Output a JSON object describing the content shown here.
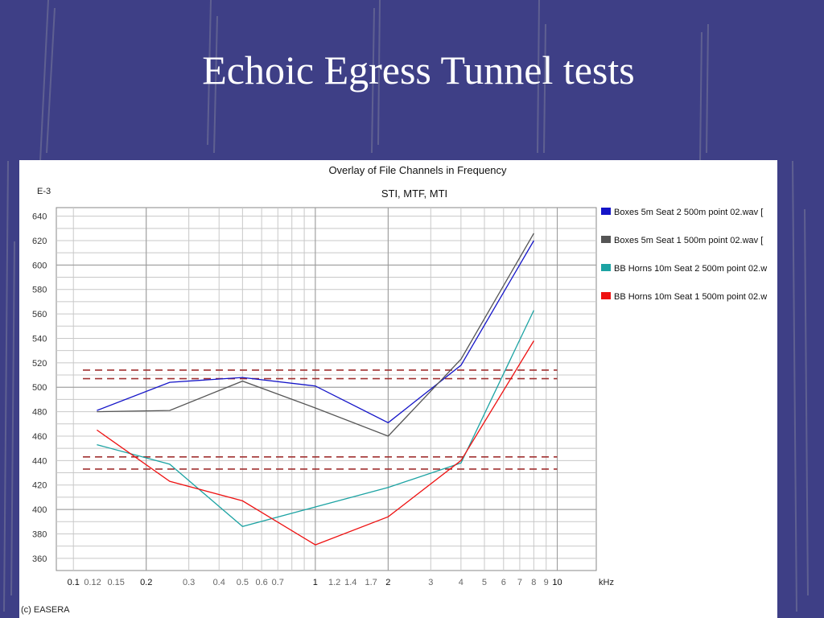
{
  "slide": {
    "title": "Echoic Egress Tunnel tests"
  },
  "chart_data": {
    "type": "line",
    "title": "Overlay of File Channels in Frequency",
    "subtitle": "STI, MTF, MTI",
    "y_exponent_label": "E-3",
    "xlabel": "kHz",
    "ylabel": "",
    "x_scale": "log",
    "xlim": [
      0.085,
      14.5
    ],
    "ylim": [
      350,
      647
    ],
    "grid": true,
    "legend_position": "right",
    "x_tick_labels": [
      {
        "value": 0.1,
        "label": "0.1"
      },
      {
        "value": 0.12,
        "label": "0.12"
      },
      {
        "value": 0.15,
        "label": "0.15"
      },
      {
        "value": 0.2,
        "label": "0.2"
      },
      {
        "value": 0.3,
        "label": "0.3"
      },
      {
        "value": 0.4,
        "label": "0.4"
      },
      {
        "value": 0.5,
        "label": "0.5"
      },
      {
        "value": 0.6,
        "label": "0.6"
      },
      {
        "value": 0.7,
        "label": "0.7"
      },
      {
        "value": 1,
        "label": "1"
      },
      {
        "value": 1.2,
        "label": "1.2"
      },
      {
        "value": 1.4,
        "label": "1.4"
      },
      {
        "value": 1.7,
        "label": "1.7"
      },
      {
        "value": 2,
        "label": "2"
      },
      {
        "value": 3,
        "label": "3"
      },
      {
        "value": 4,
        "label": "4"
      },
      {
        "value": 5,
        "label": "5"
      },
      {
        "value": 6,
        "label": "6"
      },
      {
        "value": 7,
        "label": "7"
      },
      {
        "value": 8,
        "label": "8"
      },
      {
        "value": 9,
        "label": "9"
      },
      {
        "value": 10,
        "label": "10"
      }
    ],
    "y_ticks": [
      360,
      380,
      400,
      420,
      440,
      460,
      480,
      500,
      520,
      540,
      560,
      580,
      600,
      620,
      640
    ],
    "x": [
      0.125,
      0.25,
      0.5,
      1,
      2,
      4,
      8
    ],
    "series": [
      {
        "name": "Boxes 5m Seat 2 500m point 02.wav [",
        "color": "#1414c8",
        "values": [
          481,
          504,
          508,
          501,
          471,
          518,
          620
        ]
      },
      {
        "name": "Boxes 5m Seat 1 500m point 02.wav [",
        "color": "#555555",
        "values": [
          480,
          481,
          505,
          483,
          460,
          523,
          626
        ]
      },
      {
        "name": "BB Horns 10m Seat 2 500m point 02.w",
        "color": "#1ca3a3",
        "values": [
          453,
          437,
          386,
          402,
          418,
          438,
          563
        ]
      },
      {
        "name": "BB Horns 10m Seat 1 500m point 02.w",
        "color": "#ee1111",
        "values": [
          465,
          423,
          407,
          371,
          394,
          440,
          538
        ]
      }
    ],
    "reference_lines": [
      {
        "y": 514,
        "color": "#a03030",
        "style": "dashed"
      },
      {
        "y": 507,
        "color": "#a03030",
        "style": "dashed"
      },
      {
        "y": 443,
        "color": "#a03030",
        "style": "dashed"
      },
      {
        "y": 433,
        "color": "#a03030",
        "style": "dashed"
      }
    ],
    "footer": "(c) EASERA"
  }
}
